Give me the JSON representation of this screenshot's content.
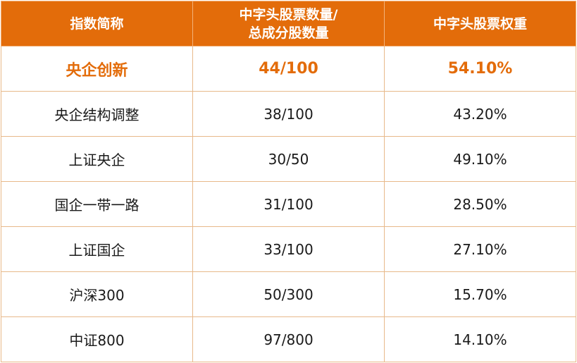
{
  "table": {
    "headers": {
      "col1": "指数简称",
      "col2_line1": "中字头股票数量/",
      "col2_line2": "总成分股数量",
      "col3": "中字头股票权重"
    },
    "rows": [
      {
        "name": "央企创新",
        "count": "44/100",
        "weight": "54.10%",
        "highlight": true
      },
      {
        "name": "央企结构调整",
        "count": "38/100",
        "weight": "43.20%"
      },
      {
        "name": "上证央企",
        "count": "30/50",
        "weight": "49.10%"
      },
      {
        "name": "国企一带一路",
        "count": "31/100",
        "weight": "28.50%"
      },
      {
        "name": "上证国企",
        "count": "33/100",
        "weight": "27.10%"
      },
      {
        "name": "沪深300",
        "count": "50/300",
        "weight": "15.70%"
      },
      {
        "name": "中证800",
        "count": "97/800",
        "weight": "14.10%"
      }
    ]
  },
  "colors": {
    "header_bg": "#e36c0a",
    "highlight_text": "#e36c0a",
    "border": "#e8b98a"
  }
}
